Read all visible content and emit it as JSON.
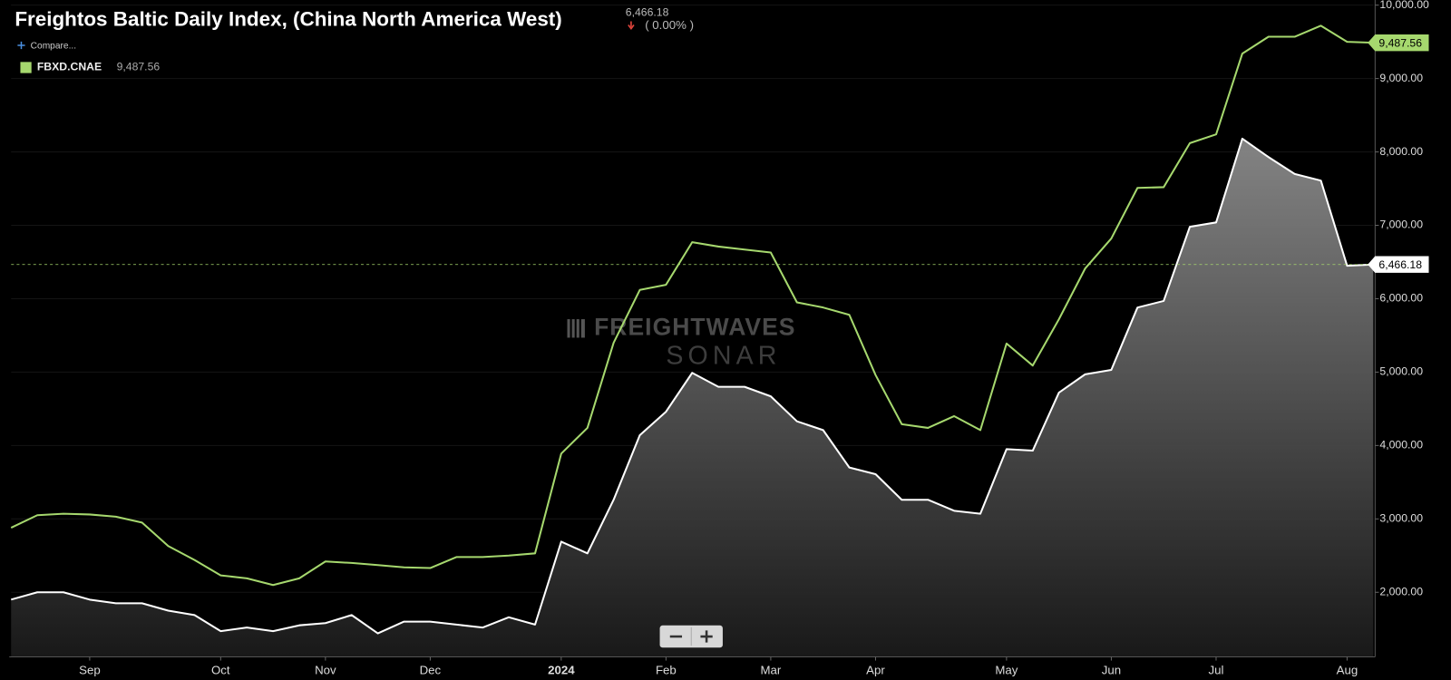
{
  "chart_data": {
    "type": "line",
    "title": "Freightos Baltic Daily Index, (China North America West)",
    "change": "( 0.00% )",
    "compare": "Compare...",
    "watermark": [
      "FREIGHTWAVES",
      "SONAR"
    ],
    "categories": [
      null,
      null,
      null,
      "Sep",
      null,
      null,
      null,
      null,
      "Oct",
      null,
      null,
      null,
      "Nov",
      null,
      null,
      null,
      "Dec",
      null,
      null,
      null,
      null,
      "2024",
      null,
      null,
      null,
      "Feb",
      null,
      null,
      null,
      "Mar",
      null,
      null,
      null,
      "Apr",
      null,
      null,
      null,
      null,
      "May",
      null,
      null,
      null,
      "Jun",
      null,
      null,
      null,
      "Jul",
      null,
      null,
      null,
      null,
      "Aug",
      null
    ],
    "series": [
      {
        "color": "#ffffff",
        "area": true,
        "value_label": "6,466.18",
        "values": [
          1900,
          2000,
          2000,
          1900,
          1850,
          1850,
          1750,
          1690,
          1470,
          1520,
          1470,
          1550,
          1580,
          1690,
          1440,
          1600,
          1600,
          1560,
          1520,
          1660,
          1560,
          2690,
          2530,
          3260,
          4140,
          4460,
          4990,
          4800,
          4800,
          4670,
          4330,
          4210,
          3700,
          3610,
          3260,
          3260,
          3110,
          3070,
          3950,
          3930,
          4720,
          4970,
          5030,
          5880,
          5970,
          6980,
          7040,
          8180,
          7930,
          7700,
          7610,
          6450,
          6466.18
        ]
      },
      {
        "name": "FBXD.CNAE",
        "color": "#a6d86e",
        "value_label": "9,487.56",
        "values": [
          2880,
          3050,
          3070,
          3060,
          3030,
          2950,
          2630,
          2440,
          2230,
          2190,
          2100,
          2190,
          2420,
          2400,
          2370,
          2340,
          2330,
          2480,
          2480,
          2500,
          2530,
          3890,
          4240,
          5400,
          6120,
          6190,
          6770,
          6710,
          6670,
          6630,
          5950,
          5880,
          5780,
          4960,
          4290,
          4240,
          4400,
          4210,
          5390,
          5090,
          5720,
          6410,
          6820,
          7510,
          7520,
          8120,
          8240,
          9340,
          9570,
          9570,
          9720,
          9500,
          9487.56
        ]
      }
    ],
    "ylim": [
      1120,
      10070
    ],
    "yticks": [
      {
        "value": 2000,
        "label": "2,000.00"
      },
      {
        "value": 3000,
        "label": "3,000.00"
      },
      {
        "value": 4000,
        "label": "4,000.00"
      },
      {
        "value": 5000,
        "label": "5,000.00"
      },
      {
        "value": 6000,
        "label": "6,000.00"
      },
      {
        "value": 7000,
        "label": "7,000.00"
      },
      {
        "value": 8000,
        "label": "8,000.00"
      },
      {
        "value": 9000,
        "label": "9,000.00"
      },
      {
        "value": 10000,
        "label": "10,000.00"
      }
    ],
    "grid": true
  }
}
